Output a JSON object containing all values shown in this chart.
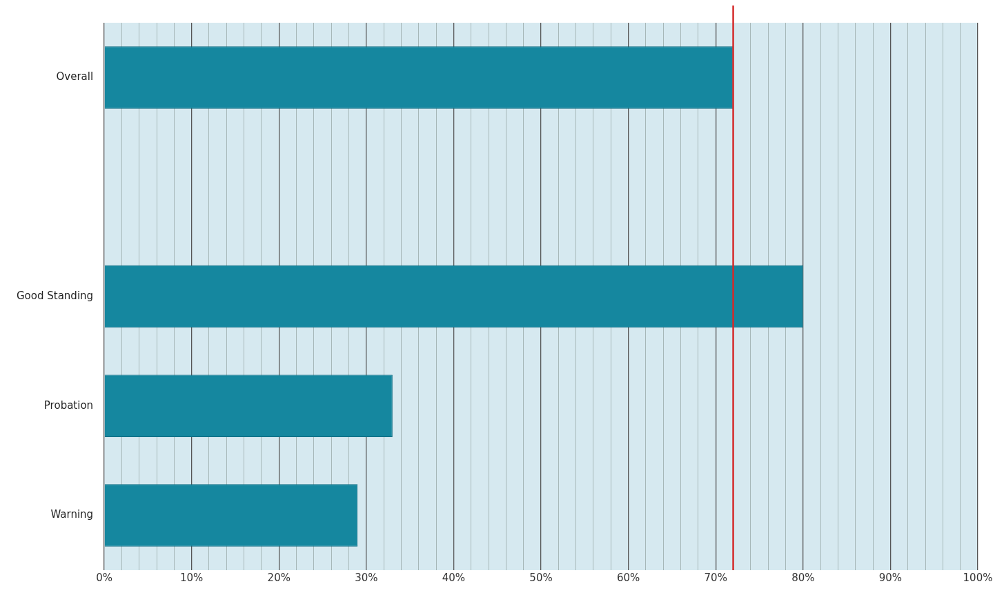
{
  "chart_data": {
    "type": "bar",
    "orientation": "horizontal",
    "categories": [
      "Overall",
      null,
      "Good Standing",
      "Probation",
      "Warning"
    ],
    "values": [
      72,
      null,
      80,
      33,
      29
    ],
    "color": "#15879f",
    "xlim": [
      0,
      100
    ],
    "xticks": [
      {
        "value": 0,
        "label": "0%"
      },
      {
        "value": 2,
        "label": null
      },
      {
        "value": 4,
        "label": null
      },
      {
        "value": 6,
        "label": null
      },
      {
        "value": 8,
        "label": null
      },
      {
        "value": 10,
        "label": "10%"
      },
      {
        "value": 12,
        "label": null
      },
      {
        "value": 14,
        "label": null
      },
      {
        "value": 16,
        "label": null
      },
      {
        "value": 18,
        "label": null
      },
      {
        "value": 20,
        "label": "20%"
      },
      {
        "value": 22,
        "label": null
      },
      {
        "value": 24,
        "label": null
      },
      {
        "value": 26,
        "label": null
      },
      {
        "value": 28,
        "label": null
      },
      {
        "value": 30,
        "label": "30%"
      },
      {
        "value": 32,
        "label": null
      },
      {
        "value": 34,
        "label": null
      },
      {
        "value": 36,
        "label": null
      },
      {
        "value": 38,
        "label": null
      },
      {
        "value": 40,
        "label": "40%"
      },
      {
        "value": 42,
        "label": null
      },
      {
        "value": 44,
        "label": null
      },
      {
        "value": 46,
        "label": null
      },
      {
        "value": 48,
        "label": null
      },
      {
        "value": 50,
        "label": "50%"
      },
      {
        "value": 52,
        "label": null
      },
      {
        "value": 54,
        "label": null
      },
      {
        "value": 56,
        "label": null
      },
      {
        "value": 58,
        "label": null
      },
      {
        "value": 60,
        "label": "60%"
      },
      {
        "value": 62,
        "label": null
      },
      {
        "value": 64,
        "label": null
      },
      {
        "value": 66,
        "label": null
      },
      {
        "value": 68,
        "label": null
      },
      {
        "value": 70,
        "label": "70%"
      },
      {
        "value": 72,
        "label": null
      },
      {
        "value": 74,
        "label": null
      },
      {
        "value": 76,
        "label": null
      },
      {
        "value": 78,
        "label": null
      },
      {
        "value": 80,
        "label": "80%"
      },
      {
        "value": 82,
        "label": null
      },
      {
        "value": 84,
        "label": null
      },
      {
        "value": 86,
        "label": null
      },
      {
        "value": 88,
        "label": null
      },
      {
        "value": 90,
        "label": "90%"
      },
      {
        "value": 92,
        "label": null
      },
      {
        "value": 94,
        "label": null
      },
      {
        "value": 96,
        "label": null
      },
      {
        "value": 98,
        "label": null
      },
      {
        "value": 100,
        "label": "100%"
      }
    ],
    "grid": "x",
    "legend": false,
    "ref_lines": [
      {
        "axis": "x",
        "value": 72,
        "color": "#d42a2a"
      }
    ]
  }
}
